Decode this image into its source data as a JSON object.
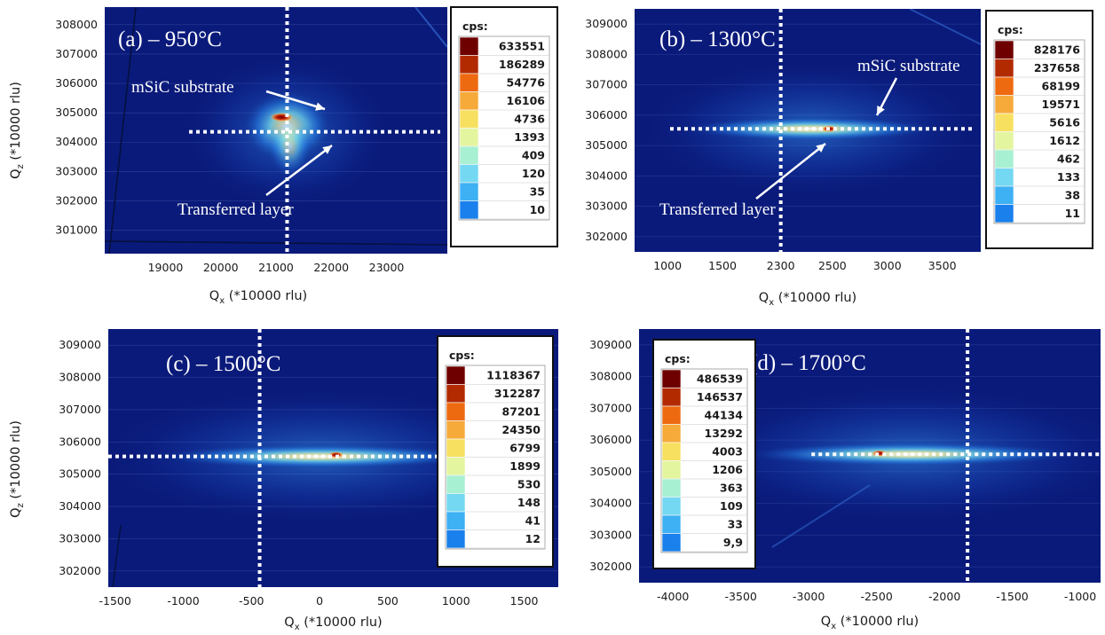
{
  "chart_data": [
    {
      "type": "heatmap",
      "panel_label": "(a) – 950°C",
      "xlabel_main": "Q",
      "xlabel_sub": "x",
      "xlabel_rest": " (*10000 rlu)",
      "ylabel_main": "Q",
      "ylabel_sub": "z",
      "ylabel_rest": " (*10000 rlu)",
      "xlim": [
        17900,
        24100
      ],
      "ylim": [
        300200,
        308600
      ],
      "xticks": [
        "19000",
        "20000",
        "21000",
        "22000",
        "23000"
      ],
      "yticks": [
        "301000",
        "302000",
        "303000",
        "304000",
        "305000",
        "306000",
        "307000",
        "308000"
      ],
      "legend_title": "cps:",
      "legend_values": [
        "633551",
        "186289",
        "54776",
        "16106",
        "4736",
        "1393",
        "409",
        "120",
        "35",
        "10"
      ],
      "legend_position": "top-right",
      "guide_vertical_x": 21200,
      "guide_horizontal_y": 304350,
      "peaks": [
        {
          "label": "mSiC substrate",
          "qx": 21100,
          "qz": 304850
        },
        {
          "label": "Transferred layer",
          "qx": 21200,
          "qz": 304350
        }
      ]
    },
    {
      "type": "heatmap",
      "panel_label": "(b) – 1300°C",
      "xlabel_main": "Q",
      "xlabel_sub": "x",
      "xlabel_rest": " (*10000 rlu)",
      "ylabel_main": "",
      "ylabel_sub": "",
      "ylabel_rest": "",
      "xlim": [
        700,
        3850
      ],
      "ylim": [
        301500,
        309500
      ],
      "xticks": [
        "1000",
        "1500",
        "2300",
        "2500",
        "3000",
        "3500"
      ],
      "ytick_values": [
        302000,
        303000,
        304000,
        305000,
        306000,
        307000,
        308000,
        309000
      ],
      "yticks": [
        "302000",
        "303000",
        "304000",
        "305000",
        "306000",
        "307000",
        "308000",
        "309000"
      ],
      "legend_title": "cps:",
      "legend_values": [
        "828176",
        "237658",
        "68199",
        "19571",
        "5616",
        "1612",
        "462",
        "133",
        "38",
        "11"
      ],
      "legend_position": "top-right",
      "guide_vertical_x": 2030,
      "guide_horizontal_y": 305550,
      "peaks": [
        {
          "label": "mSiC substrate",
          "qx": 2470,
          "qz": 305550
        },
        {
          "label": "Transferred layer",
          "qx": 2030,
          "qz": 305550
        }
      ]
    },
    {
      "type": "heatmap",
      "panel_label": "(c) – 1500°C",
      "xlabel_main": "Q",
      "xlabel_sub": "x",
      "xlabel_rest": " (*10000 rlu)",
      "ylabel_main": "Q",
      "ylabel_sub": "z",
      "ylabel_rest": " (*10000 rlu)",
      "xlim": [
        -1550,
        1750
      ],
      "ylim": [
        301500,
        309500
      ],
      "xticks": [
        "-1500",
        "-1000",
        "-500",
        "0",
        "500",
        "1000",
        "1500"
      ],
      "yticks": [
        "302000",
        "303000",
        "304000",
        "305000",
        "306000",
        "307000",
        "308000",
        "309000"
      ],
      "legend_title": "cps:",
      "legend_values": [
        "1118367",
        "312287",
        "87201",
        "24350",
        "6799",
        "1899",
        "530",
        "148",
        "41",
        "12"
      ],
      "legend_position": "top-right",
      "guide_vertical_x": -440,
      "guide_horizontal_y": 305550,
      "peaks": [
        {
          "label": "",
          "qx": 120,
          "qz": 305600
        }
      ]
    },
    {
      "type": "heatmap",
      "panel_label": "(d) – 1700°C",
      "xlabel_main": "Q",
      "xlabel_sub": "x",
      "xlabel_rest": " (*10000 rlu)",
      "ylabel_main": "",
      "ylabel_sub": "",
      "ylabel_rest": "",
      "xlim": [
        -4250,
        -850
      ],
      "ylim": [
        301500,
        309500
      ],
      "xticks": [
        "-4000",
        "-3500",
        "-3000",
        "-2500",
        "-2000",
        "-1500",
        "-1000"
      ],
      "yticks": [
        "302000",
        "303000",
        "304000",
        "305000",
        "306000",
        "307000",
        "308000",
        "309000"
      ],
      "legend_title": "cps:",
      "legend_values": [
        "486539",
        "146537",
        "44134",
        "13292",
        "4003",
        "1206",
        "363",
        "109",
        "33",
        "9,9"
      ],
      "legend_position": "top-left",
      "guide_vertical_x": -1830,
      "guide_horizontal_y": 305550,
      "peaks": [
        {
          "label": "",
          "qx": -2480,
          "qz": 305580
        }
      ]
    }
  ],
  "colors": {
    "background_map": "#0a1a7a",
    "scale": [
      "#6e0000",
      "#b22a00",
      "#ee6a10",
      "#f6aa3a",
      "#f7e060",
      "#e4f5a0",
      "#a8f0d2",
      "#74d8f2",
      "#3eb0f4",
      "#1a80ec"
    ],
    "guide_line": "#ffffff"
  }
}
